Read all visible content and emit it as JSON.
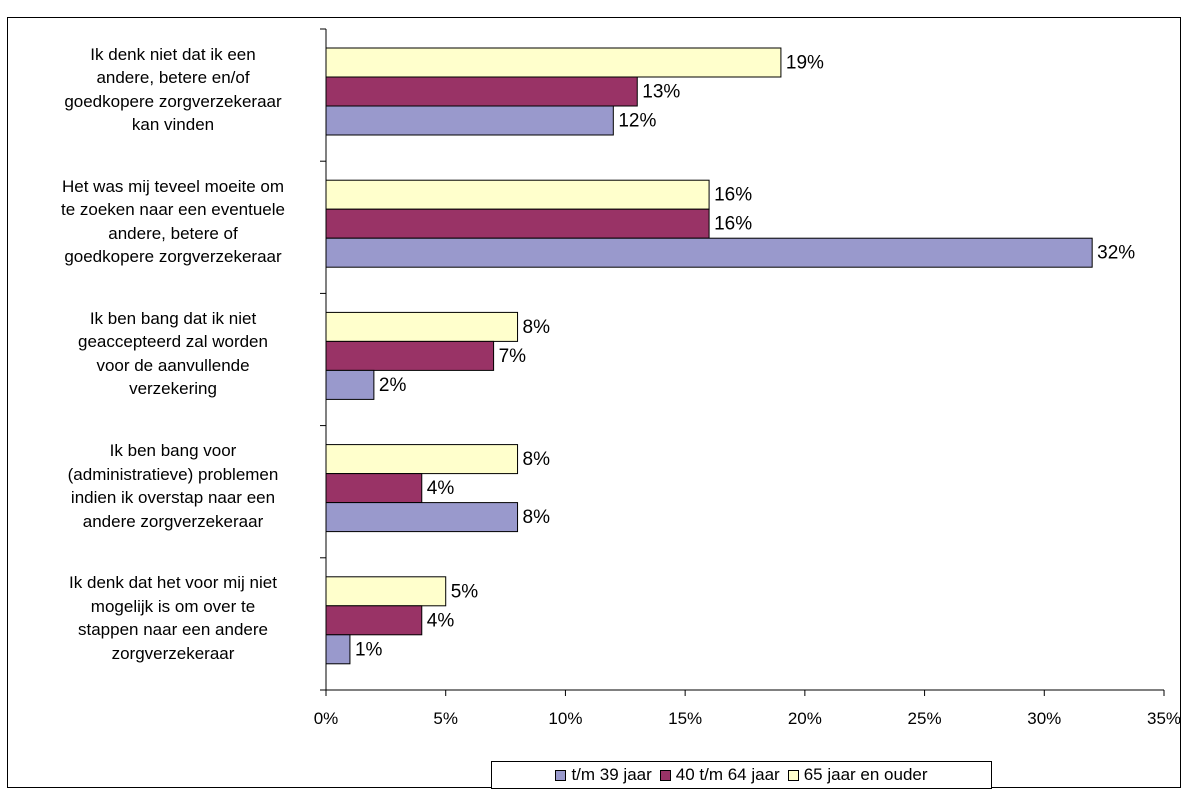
{
  "chart_data": {
    "type": "bar",
    "orientation": "horizontal",
    "title": "",
    "categories": [
      [
        "Ik denk niet dat ik een",
        "andere, betere en/of",
        "goedkopere zorgverzekeraar",
        "kan vinden"
      ],
      [
        "Het was mij teveel moeite om",
        "te zoeken naar een eventuele",
        "andere, betere of",
        "goedkopere zorgverzekeraar"
      ],
      [
        "Ik ben bang dat ik niet",
        "geaccepteerd zal worden",
        "voor de aanvullende",
        "verzekering"
      ],
      [
        "Ik ben bang voor",
        "(administratieve) problemen",
        "indien ik overstap naar een",
        "andere zorgverzekeraar"
      ],
      [
        "Ik denk dat het voor mij niet",
        "mogelijk is om over te",
        "stappen naar een andere",
        "zorgverzekeraar"
      ]
    ],
    "series": [
      {
        "name": "65 jaar en ouder",
        "color": "#ffffcc",
        "values": [
          19,
          16,
          8,
          8,
          5
        ]
      },
      {
        "name": "40 t/m 64 jaar",
        "color": "#993366",
        "values": [
          13,
          16,
          7,
          4,
          4
        ]
      },
      {
        "name": "t/m 39 jaar",
        "color": "#9999cc",
        "values": [
          12,
          32,
          2,
          8,
          1
        ]
      }
    ],
    "legend_order": [
      "t/m 39 jaar",
      "40 t/m 64 jaar",
      "65 jaar en ouder"
    ],
    "xlim": [
      0,
      35
    ],
    "xticks": [
      0,
      5,
      10,
      15,
      20,
      25,
      30,
      35
    ],
    "tick_suffix": "%",
    "value_suffix": "%",
    "legend_position": "bottom",
    "grid": false
  }
}
